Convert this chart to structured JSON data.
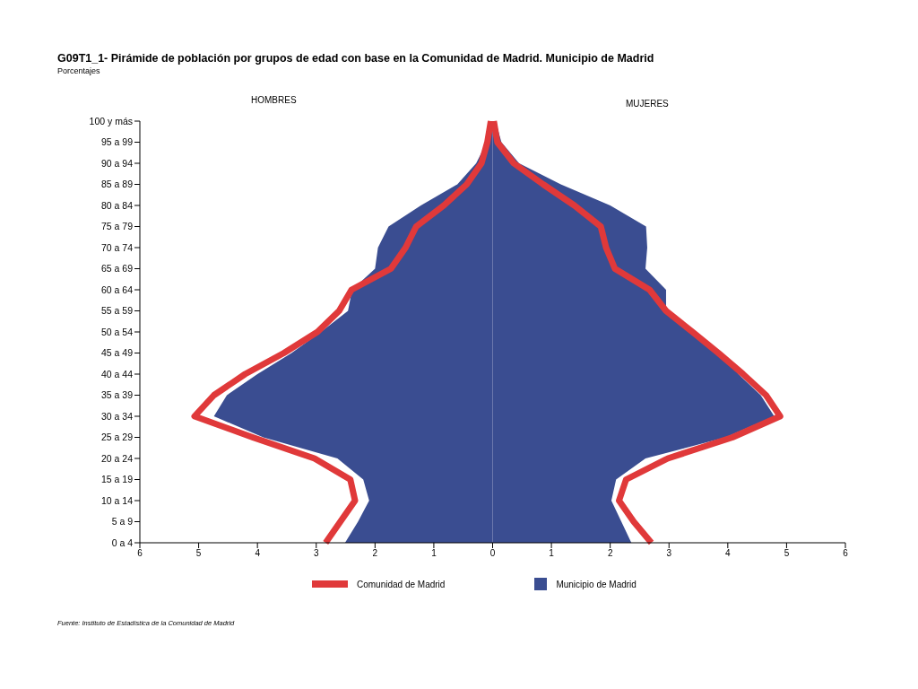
{
  "chart_data": {
    "type": "line",
    "orientation": "horizontal",
    "title": "G09T1_1- Pirámide de población por grupos de edad con base en la Comunidad de Madrid.  Municipio de Madrid",
    "subtitle": "Porcentajes",
    "categories": [
      "100 y más",
      "95 a 99",
      "90 a 94",
      "85 a 89",
      "80 a 84",
      "75 a 79",
      "70 a 74",
      "65 a 69",
      "60 a 64",
      "55 a 59",
      "50 a 54",
      "45 a 49",
      "40 a 44",
      "35 a 39",
      "30 a 34",
      "25 a 29",
      "20 a 24",
      "15 a 19",
      "10 a 14",
      "5 a 9",
      "0 a 4"
    ],
    "series": [
      {
        "name": "Municipio de Madrid",
        "type": "area",
        "color": "#3a4d91",
        "values": [
          -0.05,
          -0.1,
          -0.28,
          -0.6,
          -1.22,
          -1.77,
          -1.95,
          -2.0,
          -2.39,
          -2.46,
          -2.92,
          -3.42,
          -4.0,
          -4.52,
          -4.74,
          -3.9,
          -2.64,
          -2.2,
          -2.1,
          -2.29,
          -2.51
        ]
      },
      {
        "type": "area",
        "color": "#3a4d91",
        "values": [
          0.05,
          0.15,
          0.45,
          1.16,
          2.0,
          2.61,
          2.63,
          2.6,
          2.95,
          2.95,
          3.43,
          3.88,
          4.18,
          4.56,
          4.79,
          3.96,
          2.6,
          2.1,
          2.02,
          2.19,
          2.36
        ]
      },
      {
        "name": "Comunidad de Madrid",
        "color": "#e0393a",
        "values": [
          -0.03,
          -0.09,
          -0.19,
          -0.44,
          -0.83,
          -1.3,
          -1.48,
          -1.73,
          -2.4,
          -2.61,
          -2.98,
          -3.55,
          -4.21,
          -4.74,
          -5.07,
          -4.08,
          -3.03,
          -2.42,
          -2.34,
          -2.59,
          -2.84
        ]
      },
      {
        "color": "#e0393a",
        "values": [
          0.02,
          0.08,
          0.36,
          0.86,
          1.39,
          1.84,
          1.93,
          2.08,
          2.67,
          2.95,
          3.4,
          3.84,
          4.26,
          4.65,
          4.89,
          4.08,
          2.98,
          2.27,
          2.15,
          2.4,
          2.7
        ]
      }
    ],
    "xlim": [
      -6,
      6
    ],
    "xticks": [
      {
        "value": -6,
        "label": "6"
      },
      {
        "value": -5,
        "label": "5"
      },
      {
        "value": -4,
        "label": "4"
      },
      {
        "value": -3,
        "label": "3"
      },
      {
        "value": -2,
        "label": "2"
      },
      {
        "value": -1,
        "label": "1"
      },
      0,
      1,
      2,
      3,
      4,
      5,
      6
    ],
    "legend": "bottom",
    "grid": false,
    "marker": "none",
    "annotations": [
      "HOMBRES",
      "MUJERES",
      "Fuente: Instituto de Estadística de la Comunidad de Madrid"
    ]
  }
}
